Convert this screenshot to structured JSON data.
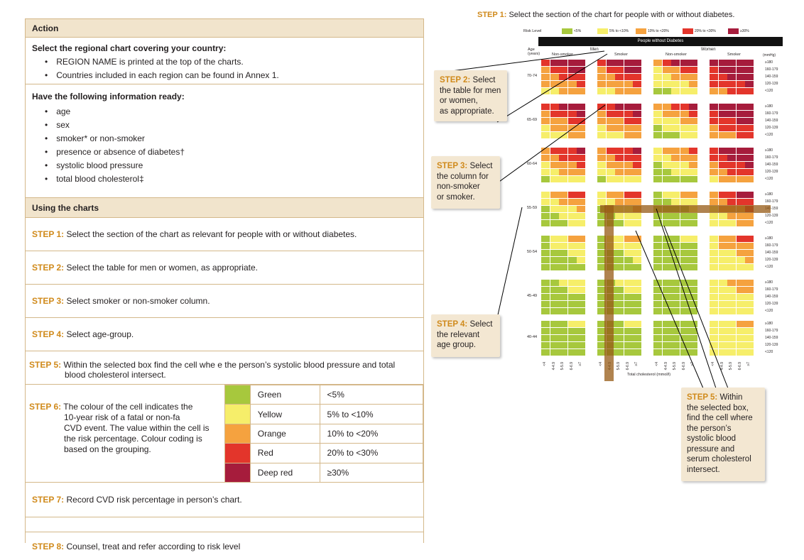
{
  "left": {
    "action_header": "Action",
    "select_title": "Select the regional chart covering your country:",
    "select_items": [
      "REGION NAME is printed at the top of the charts.",
      "Countries included in each region can be found in Annex 1."
    ],
    "info_title": "Have the following information ready:",
    "info_items": [
      "age",
      "sex",
      "smoker* or non-smoker",
      "presence or absence of diabetes†",
      "systolic blood pressure",
      "total blood cholesterol‡"
    ],
    "using_header": "Using the charts",
    "steps": [
      {
        "label": "STEP 1:",
        "text": "Select the section of the chart as relevant for people with or without diabetes."
      },
      {
        "label": "STEP 2:",
        "text": "Select the table for men or women, as appropriate."
      },
      {
        "label": "STEP 3:",
        "text": "Select smoker or non-smoker column."
      },
      {
        "label": "STEP 4:",
        "text": "Select age-group."
      },
      {
        "label": "STEP 5:",
        "text": "Within the selected box find the cell whe e the person’s systolic blood pressure and total",
        "text2": "blood cholesterol intersect."
      },
      {
        "label": "STEP 6:",
        "text": "The colour of the cell indicates the",
        "text2": "10-year risk of a fatal or non-fa",
        "text3": "CVD event. The value within the cell is",
        "text4": "the risk percentage. Colour coding is",
        "text5": "based on the grouping."
      },
      {
        "label": "STEP 7:",
        "text": "Record CVD risk percentage in person’s chart."
      },
      {
        "label": "STEP 8:",
        "text": "Counsel, treat and refer according to risk level"
      }
    ],
    "risk_legend": [
      {
        "name": "Green",
        "range": "<5%",
        "color": "#a7c83d"
      },
      {
        "name": "Yellow",
        "range": "5% to <10%",
        "color": "#f6ee6a"
      },
      {
        "name": "Orange",
        "range": "10% to <20%",
        "color": "#f5a23f"
      },
      {
        "name": "Red",
        "range": "20% to <30%",
        "color": "#e3352b"
      },
      {
        "name": "Deep red",
        "range": "≥30%",
        "color": "#a61c3c"
      }
    ]
  },
  "right": {
    "title_label": "STEP 1:",
    "title_text": "Select the section of the chart for people with or without diabetes.",
    "callout2_label": "STEP 2:",
    "callout2_text": [
      "Select",
      "the table for men",
      "or women,",
      "as appropriate."
    ],
    "callout3_label": "STEP 3:",
    "callout3_text": [
      "Select",
      "the column for",
      "non-smoker",
      "or smoker."
    ],
    "callout4_label": "STEP 4:",
    "callout4_text": [
      "Select",
      "the relevant",
      "age group."
    ],
    "callout5_label": "STEP 5:",
    "callout5_text": [
      "Within",
      "the selected box,",
      "find the cell where",
      "the person’s",
      "systolic blood",
      "pressure and",
      "serum cholesterol",
      "intersect."
    ],
    "chart": {
      "risk_level_label": "Risk Level",
      "levels": [
        "<5%",
        "5% to <10%",
        "10% to <20%",
        "20% to <30%",
        "≥30%"
      ],
      "banner": "People without Diabetes",
      "age_label": "Age (years)",
      "men": "Men",
      "women": "Women",
      "non_smoker": "Non-smoker",
      "smoker": "Smoker",
      "mmhg": "(mmHg)",
      "sbp": [
        "≥180",
        "160-179",
        "140-159",
        "120-139",
        "<120"
      ],
      "ages": [
        "70-74",
        "65-69",
        "60-64",
        "55-59",
        "50-54",
        "45-49",
        "40-44"
      ],
      "chol": [
        "<4",
        "4-4.9",
        "5-5.9",
        "6-6.9",
        "≥7"
      ],
      "xlabel": "Total cholesterol (mmol/l)"
    }
  }
}
